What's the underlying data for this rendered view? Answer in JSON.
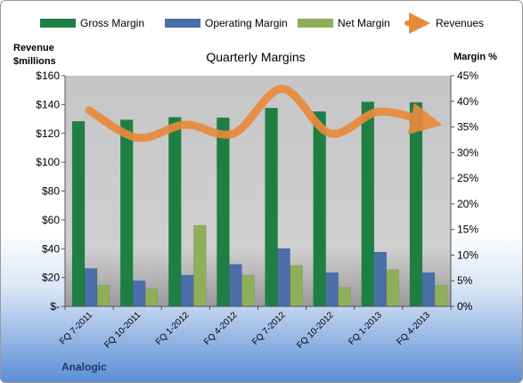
{
  "chart_data": {
    "type": "bar",
    "title": "Quarterly Margins",
    "y_left_label_lines": [
      "Revenue",
      "$millions"
    ],
    "y_right_label": "Margin %",
    "caption": "Analogic",
    "categories": [
      "FQ 7-2011",
      "FQ 10-2011",
      "FQ 1-2012",
      "FQ 4-2012",
      "FQ 7-2012",
      "FQ 10-2012",
      "FQ 1-2013",
      "FQ 4-2013"
    ],
    "left_axis": {
      "min": 0,
      "max": 160,
      "step": 20,
      "tick_labels": [
        "$-",
        "$20",
        "$40",
        "$60",
        "$80",
        "$100",
        "$120",
        "$140",
        "$160"
      ]
    },
    "right_axis": {
      "min": 0,
      "max": 45,
      "step": 5,
      "tick_labels": [
        "0%",
        "5%",
        "10%",
        "15%",
        "20%",
        "25%",
        "30%",
        "35%",
        "40%",
        "45%"
      ]
    },
    "series": [
      {
        "name": "Gross Margin",
        "kind": "bar",
        "axis": "right",
        "color": "#1e7f45",
        "values": [
          36.1,
          36.4,
          36.9,
          36.8,
          38.7,
          38.0,
          39.9,
          39.8
        ]
      },
      {
        "name": "Operating Margin",
        "kind": "bar",
        "axis": "right",
        "color": "#4a6fa8",
        "values": [
          7.4,
          5.0,
          6.1,
          8.2,
          11.3,
          6.6,
          10.6,
          6.6
        ]
      },
      {
        "name": "Net Margin",
        "kind": "bar",
        "axis": "right",
        "color": "#8fae5a",
        "values": [
          4.1,
          3.4,
          15.8,
          6.1,
          8.0,
          3.7,
          7.2,
          4.1
        ]
      },
      {
        "name": "Revenues",
        "kind": "line",
        "axis": "left",
        "color": "#e88a3c",
        "values": [
          136,
          117,
          126,
          120,
          151,
          120,
          135,
          128
        ]
      }
    ],
    "legend_position": "top",
    "grid": false
  }
}
